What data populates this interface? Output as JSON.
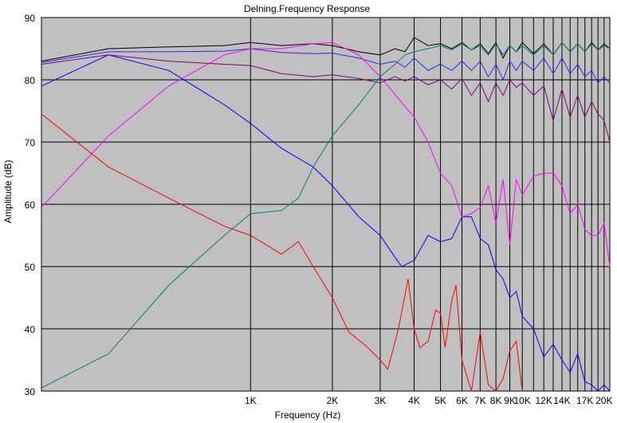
{
  "chart_data": {
    "type": "line",
    "title": "Delning.Frequency Response",
    "xlabel": "Frequency (Hz)",
    "ylabel": "Amplitude (dB)",
    "x_scale": "log",
    "xlim": [
      170,
      21000
    ],
    "ylim": [
      30,
      90
    ],
    "y_ticks": [
      30,
      40,
      50,
      60,
      70,
      80,
      90
    ],
    "x_tick_labels": [
      {
        "v": 1000,
        "label": "1K"
      },
      {
        "v": 2000,
        "label": "2K"
      },
      {
        "v": 3000,
        "label": "3K"
      },
      {
        "v": 4000,
        "label": "4K"
      },
      {
        "v": 5000,
        "label": "5K"
      },
      {
        "v": 6000,
        "label": "6K"
      },
      {
        "v": 7000,
        "label": "7K"
      },
      {
        "v": 8000,
        "label": "8K"
      },
      {
        "v": 9000,
        "label": "9K"
      },
      {
        "v": 10000,
        "label": "10K"
      },
      {
        "v": 12000,
        "label": "12K"
      },
      {
        "v": 14000,
        "label": "14K"
      },
      {
        "v": 17000,
        "label": "17K"
      },
      {
        "v": 20000,
        "label": "20K"
      }
    ],
    "x_gridlines": [
      1000,
      2000,
      3000,
      4000,
      5000,
      6000,
      7000,
      8000,
      9000,
      10000,
      11000,
      12000,
      13000,
      14000,
      15000,
      16000,
      17000,
      18000,
      19000,
      20000
    ],
    "grid": true,
    "plot_background": "#c0c0c0",
    "series": [
      {
        "color": "#000000",
        "points": [
          [
            170,
            83
          ],
          [
            300,
            85
          ],
          [
            500,
            85.3
          ],
          [
            800,
            85.5
          ],
          [
            1000,
            86
          ],
          [
            1300,
            85.5
          ],
          [
            1700,
            85.8
          ],
          [
            2000,
            85.5
          ],
          [
            2500,
            84.5
          ],
          [
            3000,
            84
          ],
          [
            3400,
            85
          ],
          [
            3700,
            84.5
          ],
          [
            4000,
            86.8
          ],
          [
            4500,
            85.5
          ],
          [
            5000,
            85.8
          ],
          [
            5500,
            85
          ],
          [
            6000,
            86
          ],
          [
            6500,
            84.8
          ],
          [
            7000,
            85.8
          ],
          [
            7500,
            84.2
          ],
          [
            8000,
            86
          ],
          [
            8500,
            83.5
          ],
          [
            9000,
            85.5
          ],
          [
            9500,
            84.5
          ],
          [
            10000,
            86
          ],
          [
            11000,
            84.2
          ],
          [
            12000,
            85.8
          ],
          [
            13000,
            84
          ],
          [
            14000,
            86
          ],
          [
            15000,
            84.5
          ],
          [
            16000,
            85.8
          ],
          [
            17000,
            84.5
          ],
          [
            18000,
            86
          ],
          [
            19000,
            84.8
          ],
          [
            20000,
            85.8
          ],
          [
            21000,
            85
          ]
        ]
      },
      {
        "color": "#0000ff",
        "points": [
          [
            170,
            79
          ],
          [
            300,
            84
          ],
          [
            500,
            81.5
          ],
          [
            800,
            76
          ],
          [
            1000,
            73
          ],
          [
            1300,
            69
          ],
          [
            1700,
            66
          ],
          [
            2000,
            63
          ],
          [
            2500,
            58
          ],
          [
            3000,
            55
          ],
          [
            3400,
            51.5
          ],
          [
            3600,
            50
          ],
          [
            4000,
            51
          ],
          [
            4500,
            55
          ],
          [
            5000,
            54
          ],
          [
            5500,
            54.5
          ],
          [
            6000,
            58
          ],
          [
            6500,
            58
          ],
          [
            7000,
            54.5
          ],
          [
            7500,
            53.5
          ],
          [
            8000,
            49.5
          ],
          [
            8500,
            48
          ],
          [
            9000,
            45
          ],
          [
            9500,
            46
          ],
          [
            10000,
            42
          ],
          [
            11000,
            40
          ],
          [
            12000,
            35.5
          ],
          [
            13000,
            37.5
          ],
          [
            14000,
            35
          ],
          [
            15000,
            33
          ],
          [
            16000,
            36
          ],
          [
            17000,
            31.5
          ],
          [
            18000,
            31
          ],
          [
            19000,
            30
          ],
          [
            20000,
            31
          ],
          [
            21000,
            30
          ]
        ]
      },
      {
        "color": "#2828ff",
        "points": [
          [
            170,
            82.8
          ],
          [
            300,
            84.5
          ],
          [
            500,
            84.5
          ],
          [
            800,
            84.6
          ],
          [
            1000,
            85
          ],
          [
            1300,
            84.4
          ],
          [
            1700,
            84.2
          ],
          [
            2000,
            84.3
          ],
          [
            2500,
            83.5
          ],
          [
            3000,
            82.5
          ],
          [
            3400,
            83
          ],
          [
            3700,
            82
          ],
          [
            4000,
            83.5
          ],
          [
            4500,
            81.5
          ],
          [
            5000,
            82.5
          ],
          [
            5500,
            81.5
          ],
          [
            6000,
            83
          ],
          [
            6500,
            81.5
          ],
          [
            7000,
            83
          ],
          [
            7500,
            80.5
          ],
          [
            8000,
            82.5
          ],
          [
            8500,
            80
          ],
          [
            9000,
            83
          ],
          [
            9500,
            81.5
          ],
          [
            10000,
            83
          ],
          [
            11000,
            81.5
          ],
          [
            12000,
            83.5
          ],
          [
            13000,
            81
          ],
          [
            14000,
            83.5
          ],
          [
            15000,
            81
          ],
          [
            16000,
            82.5
          ],
          [
            17000,
            80.5
          ],
          [
            18000,
            81.5
          ],
          [
            19000,
            79.5
          ],
          [
            20000,
            80.5
          ],
          [
            21000,
            79.5
          ]
        ]
      },
      {
        "color": "#800080",
        "points": [
          [
            170,
            82.5
          ],
          [
            300,
            84
          ],
          [
            500,
            83
          ],
          [
            800,
            82.5
          ],
          [
            1000,
            82.3
          ],
          [
            1300,
            81
          ],
          [
            1700,
            80.5
          ],
          [
            2000,
            80.8
          ],
          [
            2500,
            80.2
          ],
          [
            3000,
            79.5
          ],
          [
            3400,
            80.5
          ],
          [
            3700,
            79.8
          ],
          [
            4000,
            80.5
          ],
          [
            4500,
            79.2
          ],
          [
            5000,
            80
          ],
          [
            5500,
            78.5
          ],
          [
            6000,
            80.2
          ],
          [
            6500,
            77.5
          ],
          [
            7000,
            79.5
          ],
          [
            7500,
            76.5
          ],
          [
            8000,
            79.5
          ],
          [
            8500,
            77.5
          ],
          [
            9000,
            80
          ],
          [
            9500,
            78.8
          ],
          [
            10000,
            79.5
          ],
          [
            11000,
            77.5
          ],
          [
            12000,
            79
          ],
          [
            13000,
            73.5
          ],
          [
            14000,
            78.5
          ],
          [
            15000,
            74
          ],
          [
            16000,
            77.5
          ],
          [
            17000,
            74
          ],
          [
            18000,
            76.5
          ],
          [
            19000,
            74.5
          ],
          [
            20000,
            73.5
          ],
          [
            21000,
            70
          ]
        ]
      },
      {
        "color": "#ff00ff",
        "points": [
          [
            170,
            59.5
          ],
          [
            300,
            71
          ],
          [
            500,
            79
          ],
          [
            800,
            84
          ],
          [
            1000,
            85
          ],
          [
            1300,
            85
          ],
          [
            1700,
            85.8
          ],
          [
            2000,
            86
          ],
          [
            2500,
            84
          ],
          [
            3000,
            80.5
          ],
          [
            3500,
            77
          ],
          [
            4000,
            74
          ],
          [
            4500,
            70
          ],
          [
            5000,
            65
          ],
          [
            5500,
            63
          ],
          [
            6000,
            58
          ],
          [
            6500,
            58.5
          ],
          [
            7000,
            59.5
          ],
          [
            7500,
            63
          ],
          [
            8000,
            57
          ],
          [
            8500,
            64
          ],
          [
            9000,
            53.5
          ],
          [
            9500,
            64
          ],
          [
            10000,
            61.5
          ],
          [
            11000,
            64.5
          ],
          [
            12000,
            65
          ],
          [
            13000,
            65
          ],
          [
            14000,
            63
          ],
          [
            15000,
            58.5
          ],
          [
            16000,
            60
          ],
          [
            17000,
            56
          ],
          [
            18000,
            55
          ],
          [
            19000,
            55
          ],
          [
            20000,
            57
          ],
          [
            21000,
            50
          ]
        ]
      },
      {
        "color": "#008080",
        "points": [
          [
            170,
            30.5
          ],
          [
            300,
            36
          ],
          [
            500,
            47
          ],
          [
            800,
            55
          ],
          [
            1000,
            58.5
          ],
          [
            1300,
            59
          ],
          [
            1500,
            61
          ],
          [
            1700,
            66
          ],
          [
            2000,
            71
          ],
          [
            2500,
            76
          ],
          [
            3000,
            80.5
          ],
          [
            3400,
            82.5
          ],
          [
            3700,
            84
          ],
          [
            4000,
            84.5
          ],
          [
            4500,
            85
          ],
          [
            5000,
            85.5
          ],
          [
            5500,
            84.8
          ],
          [
            6000,
            85.8
          ],
          [
            6500,
            84.8
          ],
          [
            7000,
            85.5
          ],
          [
            7500,
            84
          ],
          [
            8000,
            85.8
          ],
          [
            8500,
            84
          ],
          [
            9000,
            85.5
          ],
          [
            9500,
            84.5
          ],
          [
            10000,
            85.5
          ],
          [
            11000,
            84
          ],
          [
            12000,
            85.5
          ],
          [
            13000,
            84
          ],
          [
            14000,
            86
          ],
          [
            15000,
            84.5
          ],
          [
            16000,
            85.8
          ],
          [
            17000,
            84.5
          ],
          [
            18000,
            85.8
          ],
          [
            19000,
            84.8
          ],
          [
            20000,
            85.5
          ],
          [
            21000,
            85
          ]
        ]
      },
      {
        "color": "#ff0000",
        "points": [
          [
            170,
            74.5
          ],
          [
            300,
            66
          ],
          [
            500,
            61
          ],
          [
            800,
            56.5
          ],
          [
            1000,
            55
          ],
          [
            1300,
            52
          ],
          [
            1500,
            54
          ],
          [
            1700,
            50
          ],
          [
            2000,
            45
          ],
          [
            2300,
            39.5
          ],
          [
            2700,
            37
          ],
          [
            3000,
            35
          ],
          [
            3200,
            33.5
          ],
          [
            3500,
            40
          ],
          [
            3800,
            48
          ],
          [
            4000,
            40
          ],
          [
            4200,
            37
          ],
          [
            4500,
            38
          ],
          [
            4800,
            43
          ],
          [
            5000,
            42.5
          ],
          [
            5200,
            37
          ],
          [
            5500,
            44.5
          ],
          [
            5700,
            47
          ],
          [
            6000,
            35
          ],
          [
            6500,
            30
          ],
          [
            7000,
            39.5
          ],
          [
            7500,
            31
          ],
          [
            8000,
            30
          ],
          [
            8500,
            32
          ],
          [
            9000,
            36.5
          ],
          [
            9500,
            38
          ],
          [
            10000,
            30
          ]
        ]
      }
    ]
  }
}
